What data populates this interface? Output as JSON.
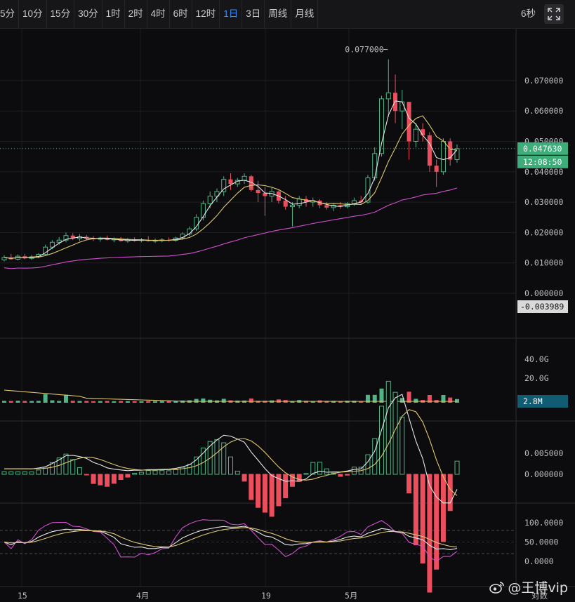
{
  "toolbar": {
    "timeframes": [
      "5分",
      "10分",
      "15分",
      "30分",
      "1时",
      "2时",
      "4时",
      "6时",
      "12时",
      "1日",
      "3日",
      "周线",
      "月线"
    ],
    "active_index": 9,
    "seconds_label": "6秒",
    "fullscreen_icon": "expand-icon"
  },
  "price_panel": {
    "y_ticks": [
      "0.070000",
      "0.060000",
      "0.050000",
      "0.040000",
      "0.030000",
      "0.020000",
      "0.010000",
      "0.000000"
    ],
    "high_marker": "0.077000",
    "current_price": "0.047630",
    "countdown": "12:08:50",
    "low_axis_label": "-0.003989",
    "colors": {
      "up": "#4fb486",
      "down": "#ec4e5e",
      "ma1": "#e8e8e8",
      "ma2": "#e0c870",
      "ma3": "#d04fd0",
      "price_tag": "#3dad7a",
      "volume_tag": "#0f5c73"
    }
  },
  "volume_panel": {
    "y_ticks": [
      "40.0G",
      "20.0G"
    ],
    "current_volume": "2.8M"
  },
  "macd_panel": {
    "y_ticks": [
      "0.005000",
      "0.000000"
    ]
  },
  "kdj_panel": {
    "y_ticks": [
      "100.0000",
      "50.0000",
      "0.0000"
    ]
  },
  "x_axis": {
    "labels": [
      "15",
      "4月",
      "19",
      "5月"
    ],
    "log_label": "对数"
  },
  "watermark": {
    "text": "@王博vip",
    "icon": "weibo-icon"
  },
  "chart_data": {
    "type": "candlestick",
    "series_ohlc": [
      [
        0.011,
        0.0125,
        0.0105,
        0.0118
      ],
      [
        0.0118,
        0.013,
        0.011,
        0.0112
      ],
      [
        0.0112,
        0.0128,
        0.0108,
        0.0122
      ],
      [
        0.0122,
        0.013,
        0.0112,
        0.0115
      ],
      [
        0.0115,
        0.0126,
        0.011,
        0.012
      ],
      [
        0.012,
        0.0132,
        0.0115,
        0.0128
      ],
      [
        0.0128,
        0.016,
        0.0125,
        0.0152
      ],
      [
        0.0152,
        0.0175,
        0.0145,
        0.0168
      ],
      [
        0.0168,
        0.0185,
        0.016,
        0.0175
      ],
      [
        0.0175,
        0.02,
        0.0168,
        0.019
      ],
      [
        0.019,
        0.0198,
        0.0175,
        0.018
      ],
      [
        0.018,
        0.0195,
        0.0172,
        0.0186
      ],
      [
        0.0186,
        0.0192,
        0.0176,
        0.018
      ],
      [
        0.018,
        0.0188,
        0.0172,
        0.0178
      ],
      [
        0.0178,
        0.0186,
        0.017,
        0.0182
      ],
      [
        0.0182,
        0.019,
        0.0174,
        0.0176
      ],
      [
        0.0176,
        0.0184,
        0.0168,
        0.0178
      ],
      [
        0.0178,
        0.0185,
        0.017,
        0.0172
      ],
      [
        0.0172,
        0.0182,
        0.0166,
        0.0176
      ],
      [
        0.0176,
        0.0184,
        0.017,
        0.0174
      ],
      [
        0.0174,
        0.0182,
        0.0168,
        0.0176
      ],
      [
        0.0176,
        0.0188,
        0.017,
        0.0172
      ],
      [
        0.0172,
        0.018,
        0.0166,
        0.0174
      ],
      [
        0.0174,
        0.0182,
        0.0168,
        0.0176
      ],
      [
        0.0176,
        0.0184,
        0.017,
        0.0174
      ],
      [
        0.0174,
        0.0186,
        0.017,
        0.0182
      ],
      [
        0.0182,
        0.02,
        0.0176,
        0.0195
      ],
      [
        0.0195,
        0.022,
        0.0188,
        0.0212
      ],
      [
        0.0212,
        0.026,
        0.0205,
        0.025
      ],
      [
        0.025,
        0.0305,
        0.024,
        0.0295
      ],
      [
        0.0295,
        0.0335,
        0.028,
        0.032
      ],
      [
        0.032,
        0.0345,
        0.03,
        0.0335
      ],
      [
        0.0335,
        0.0385,
        0.032,
        0.0375
      ],
      [
        0.0375,
        0.0395,
        0.034,
        0.036
      ],
      [
        0.036,
        0.038,
        0.035,
        0.0372
      ],
      [
        0.0372,
        0.0395,
        0.036,
        0.0385
      ],
      [
        0.0385,
        0.039,
        0.0335,
        0.034
      ],
      [
        0.034,
        0.037,
        0.03,
        0.033
      ],
      [
        0.033,
        0.035,
        0.0255,
        0.032
      ],
      [
        0.032,
        0.035,
        0.03,
        0.0335
      ],
      [
        0.0335,
        0.034,
        0.0295,
        0.0305
      ],
      [
        0.0305,
        0.032,
        0.0275,
        0.0285
      ],
      [
        0.0285,
        0.03,
        0.022,
        0.029
      ],
      [
        0.029,
        0.032,
        0.028,
        0.031
      ],
      [
        0.031,
        0.032,
        0.0285,
        0.03
      ],
      [
        0.03,
        0.0315,
        0.0285,
        0.0305
      ],
      [
        0.0305,
        0.031,
        0.028,
        0.029
      ],
      [
        0.029,
        0.03,
        0.0275,
        0.0282
      ],
      [
        0.0282,
        0.0295,
        0.027,
        0.029
      ],
      [
        0.029,
        0.03,
        0.0278,
        0.0285
      ],
      [
        0.0285,
        0.03,
        0.028,
        0.0295
      ],
      [
        0.0295,
        0.0315,
        0.0288,
        0.0305
      ],
      [
        0.0305,
        0.032,
        0.0295,
        0.03
      ],
      [
        0.03,
        0.039,
        0.0295,
        0.038
      ],
      [
        0.038,
        0.048,
        0.037,
        0.046
      ],
      [
        0.046,
        0.065,
        0.045,
        0.064
      ],
      [
        0.064,
        0.077,
        0.058,
        0.066
      ],
      [
        0.066,
        0.072,
        0.056,
        0.06
      ],
      [
        0.06,
        0.067,
        0.054,
        0.063
      ],
      [
        0.063,
        0.063,
        0.044,
        0.05
      ],
      [
        0.05,
        0.056,
        0.048,
        0.054
      ],
      [
        0.054,
        0.056,
        0.05,
        0.052
      ],
      [
        0.052,
        0.053,
        0.04,
        0.042
      ],
      [
        0.042,
        0.044,
        0.035,
        0.04
      ],
      [
        0.04,
        0.051,
        0.039,
        0.05
      ],
      [
        0.05,
        0.051,
        0.042,
        0.044
      ],
      [
        0.044,
        0.049,
        0.043,
        0.0476
      ]
    ],
    "ylim": [
      -0.003989,
      0.077
    ]
  }
}
